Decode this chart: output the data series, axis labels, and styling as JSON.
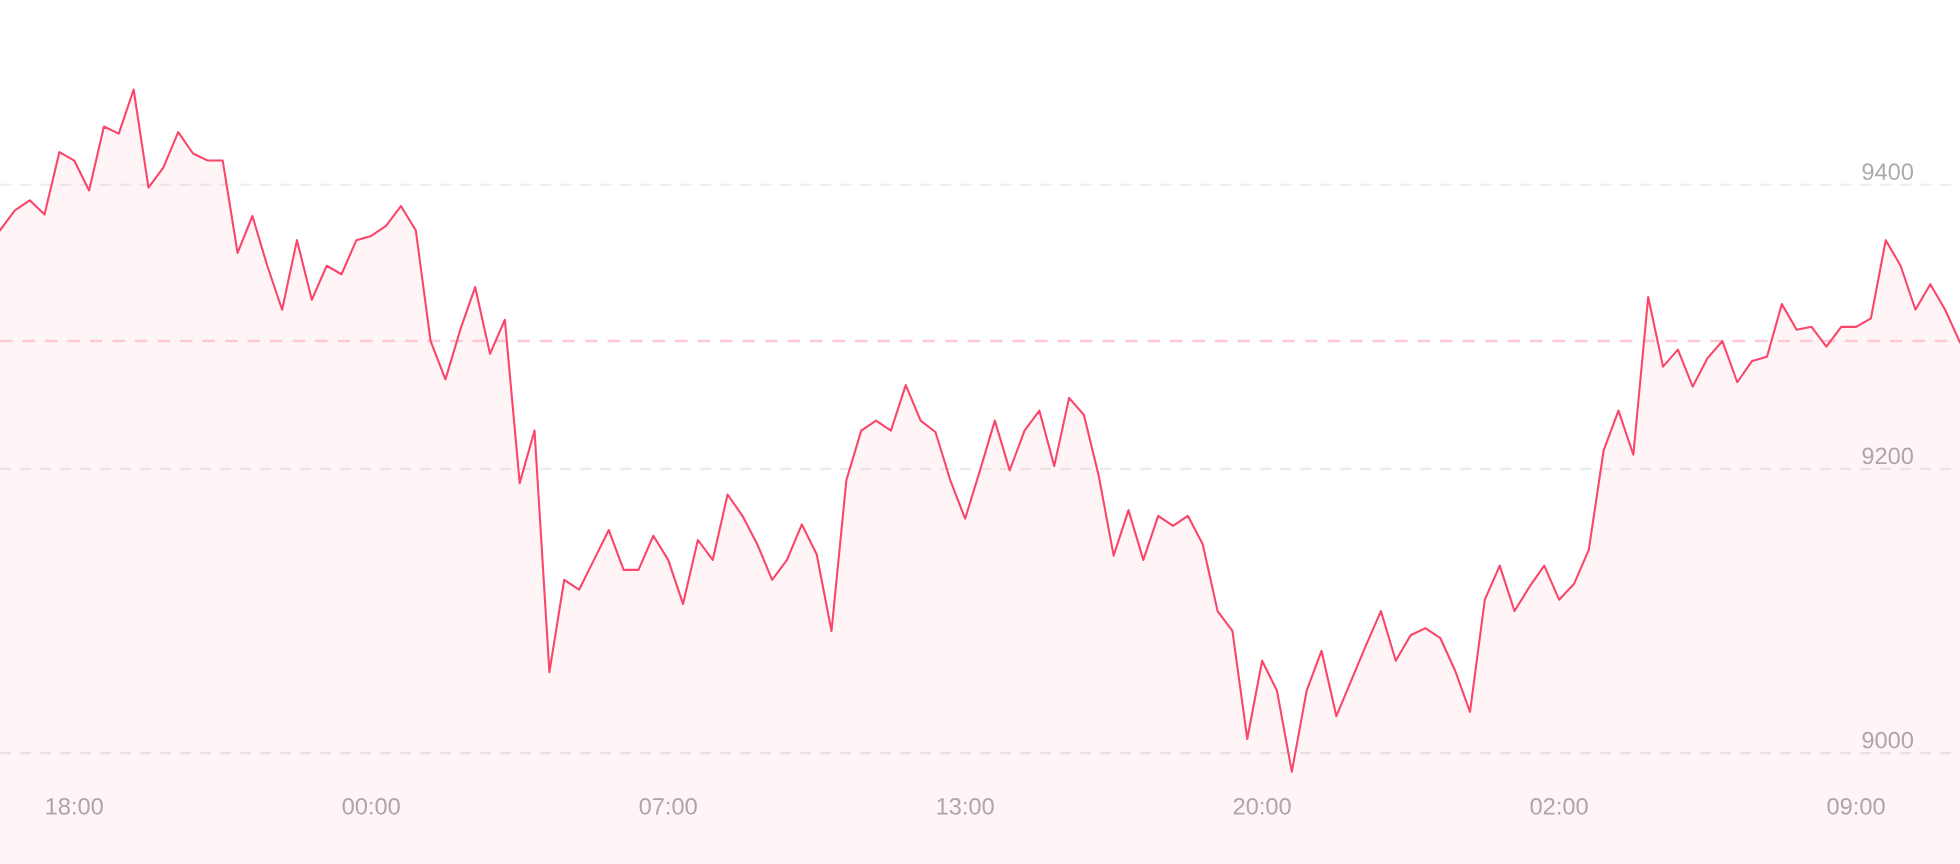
{
  "chart_data": {
    "type": "area",
    "categories": [
      null,
      null,
      null,
      null,
      null,
      "18:00",
      null,
      null,
      null,
      null,
      null,
      null,
      null,
      null,
      null,
      null,
      null,
      null,
      null,
      null,
      null,
      null,
      null,
      null,
      null,
      "00:00",
      null,
      null,
      null,
      null,
      null,
      null,
      null,
      null,
      null,
      null,
      null,
      null,
      null,
      null,
      null,
      null,
      null,
      null,
      null,
      "07:00",
      null,
      null,
      null,
      null,
      null,
      null,
      null,
      null,
      null,
      null,
      null,
      null,
      null,
      null,
      null,
      null,
      null,
      null,
      null,
      "13:00",
      null,
      null,
      null,
      null,
      null,
      null,
      null,
      null,
      null,
      null,
      null,
      null,
      null,
      null,
      null,
      null,
      null,
      null,
      null,
      "20:00",
      null,
      null,
      null,
      null,
      null,
      null,
      null,
      null,
      null,
      null,
      null,
      null,
      null,
      null,
      null,
      null,
      null,
      null,
      null,
      "02:00",
      null,
      null,
      null,
      null,
      null,
      null,
      null,
      null,
      null,
      null,
      null,
      null,
      null,
      null,
      null,
      null,
      null,
      null,
      null,
      "09:00",
      null,
      null,
      null,
      null,
      null,
      null,
      null
    ],
    "series": [
      {
        "color": "#f9466a",
        "values": [
          9368,
          9382,
          9389,
          9379,
          9423,
          9417,
          9396,
          9441,
          9436,
          9467,
          9398,
          9412,
          9437,
          9422,
          9417,
          9417,
          9352,
          9378,
          9343,
          9312,
          9361,
          9319,
          9343,
          9337,
          9361,
          9364,
          9371,
          9385,
          9368,
          9290,
          9263,
          9298,
          9328,
          9281,
          9305,
          9190,
          9227,
          9057,
          9122,
          9115,
          9136,
          9157,
          9129,
          9129,
          9153,
          9136,
          9105,
          9150,
          9136,
          9182,
          9167,
          9147,
          9122,
          9136,
          9161,
          9140,
          9086,
          9192,
          9227,
          9234,
          9227,
          9259,
          9234,
          9226,
          9192,
          9165,
          9199,
          9234,
          9199,
          9227,
          9241,
          9202,
          9250,
          9238,
          9195,
          9139,
          9171,
          9136,
          9167,
          9160,
          9167,
          9147,
          9100,
          9086,
          9010,
          9065,
          9044,
          8987,
          9044,
          9072,
          9026,
          9051,
          9076,
          9100,
          9065,
          9083,
          9088,
          9081,
          9058,
          9029,
          9108,
          9132,
          9100,
          9117,
          9132,
          9108,
          9119,
          9143,
          9213,
          9241,
          9210,
          9321,
          9272,
          9284,
          9258,
          9278,
          9290,
          9261,
          9276,
          9279,
          9316,
          9298,
          9300,
          9286,
          9300,
          9300,
          9306,
          9361,
          9343,
          9312,
          9330,
          9312,
          9289
        ]
      }
    ],
    "ylim": [
      8922,
      9530
    ],
    "yticks": [
      9000,
      9200,
      9400
    ],
    "grid": "y",
    "ref_lines": [
      {
        "axis": "y",
        "value": 9290,
        "color": "#ffc9d3",
        "line_style": "dashed"
      }
    ]
  }
}
